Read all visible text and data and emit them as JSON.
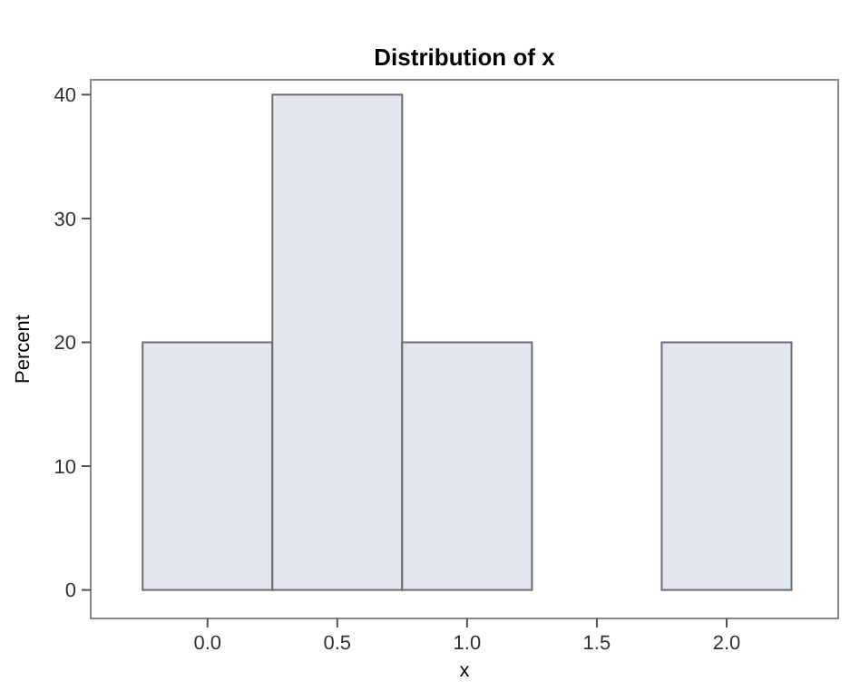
{
  "chart_data": {
    "type": "histogram",
    "title": "Distribution of x",
    "xlabel": "x",
    "ylabel": "Percent",
    "bins": [
      -0.25,
      0.25,
      0.75,
      1.25,
      1.75,
      2.25
    ],
    "values": [
      20,
      40,
      20,
      0,
      20
    ],
    "color": "#e1e6f0",
    "xlim": [
      -0.45,
      2.43
    ],
    "ylim": [
      -2.3,
      41.2
    ],
    "xticks": [
      {
        "value": 0,
        "label": "0.0"
      },
      {
        "value": 0.5,
        "label": "0.5"
      },
      {
        "value": 1,
        "label": "1.0"
      },
      {
        "value": 1.5,
        "label": "1.5"
      },
      {
        "value": 2,
        "label": "2.0"
      }
    ],
    "yticks": [
      0,
      10,
      20,
      30,
      40
    ],
    "grid": false
  }
}
